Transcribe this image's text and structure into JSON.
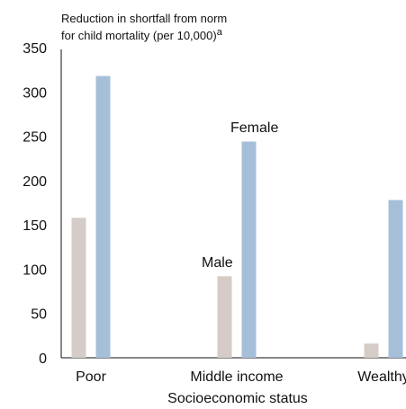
{
  "chart_data": {
    "type": "bar",
    "ylabel_line1": "Reduction in shortfall from norm",
    "ylabel_line2": "for child mortality (per 10,000)",
    "ylabel_superscript": "a",
    "xlabel": "Socioeconomic status",
    "categories": [
      "Poor",
      "Middle income",
      "Wealthy"
    ],
    "series": [
      {
        "name": "Male",
        "color": "#d5ccc7",
        "values": [
          158,
          92,
          16
        ]
      },
      {
        "name": "Female",
        "color": "#a6bfd9",
        "values": [
          318,
          244,
          178
        ]
      }
    ],
    "ylim": [
      0,
      350
    ],
    "yticks": [
      "0",
      "50",
      "100",
      "150",
      "200",
      "250",
      "300",
      "350"
    ],
    "ytick_values": [
      0,
      50,
      100,
      150,
      200,
      250,
      300,
      350
    ],
    "grid": false,
    "annotations": {
      "male_label": "Male",
      "female_label": "Female"
    }
  }
}
